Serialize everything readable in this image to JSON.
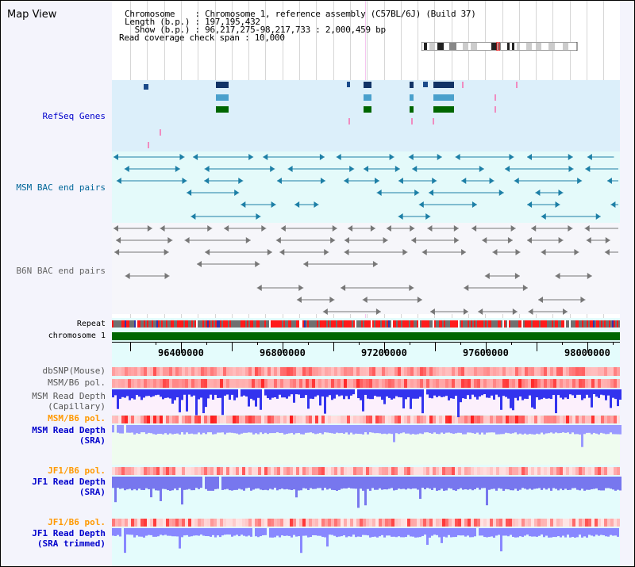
{
  "view_title": "Map View",
  "info": {
    "chromosome_label": "Chromosome    : Chromosome 1, reference assembly (C57BL/6J) (Build 37)",
    "length_label": "Length (b.p.) : 197,195,432",
    "show_label": "  Show (b.p.) : 96,217,275-98,217,733 : 2,000,459 bp",
    "span_label": "Read coverage check span : 10,000"
  },
  "tracks": {
    "refseq": "RefSeq Genes",
    "msm_bac": "MSM BAC end pairs",
    "b6n_bac": "B6N BAC end pairs",
    "repeat": "Repeat",
    "chromosome": "chromosome 1",
    "dbsnp": "dbSNP(Mouse)",
    "msm_b6_pol": "MSM/B6 pol.",
    "msm_depth_cap_1": "MSM Read Depth",
    "msm_depth_cap_2": "(Capillary)",
    "msm_b6_pol_2": "MSM/B6 pol.",
    "msm_depth_sra_1": "MSM Read Depth",
    "msm_depth_sra_2": "(SRA)",
    "jf1_b6_pol": "JF1/B6 pol.",
    "jf1_depth_1": "JF1 Read Depth",
    "jf1_depth_2": "(SRA)",
    "jf1_b6_pol_2": "JF1/B6 pol.",
    "jf1_trim_1": "JF1 Read Depth",
    "jf1_trim_2": "(SRA trimmed)"
  },
  "axis": {
    "ticks": [
      "96400000",
      "96800000",
      "97200000",
      "97600000",
      "98000000"
    ],
    "range": [
      96217275,
      98217733
    ]
  },
  "colors": {
    "refseq": "#0000cc",
    "msm": "#006699",
    "b6n": "#666666",
    "orange": "#ff9900",
    "blue": "#0000cc",
    "green": "#006600"
  }
}
